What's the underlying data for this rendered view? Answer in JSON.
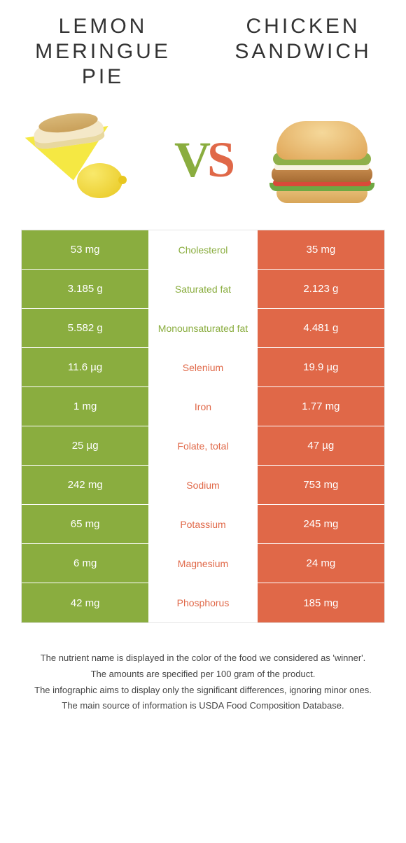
{
  "colors": {
    "green": "#8aad3f",
    "orange": "#e06848",
    "text": "#333333",
    "border": "#e5e5e5"
  },
  "header": {
    "left_title": "Lemon Meringue Pie",
    "right_title": "Chicken Sandwich",
    "vs_v": "V",
    "vs_s": "S"
  },
  "table": {
    "rows": [
      {
        "left": "53 mg",
        "label": "Cholesterol",
        "right": "35 mg",
        "winner": "left"
      },
      {
        "left": "3.185 g",
        "label": "Saturated fat",
        "right": "2.123 g",
        "winner": "left"
      },
      {
        "left": "5.582 g",
        "label": "Monounsaturated fat",
        "right": "4.481 g",
        "winner": "left"
      },
      {
        "left": "11.6 µg",
        "label": "Selenium",
        "right": "19.9 µg",
        "winner": "right"
      },
      {
        "left": "1 mg",
        "label": "Iron",
        "right": "1.77 mg",
        "winner": "right"
      },
      {
        "left": "25 µg",
        "label": "Folate, total",
        "right": "47 µg",
        "winner": "right"
      },
      {
        "left": "242 mg",
        "label": "Sodium",
        "right": "753 mg",
        "winner": "right"
      },
      {
        "left": "65 mg",
        "label": "Potassium",
        "right": "245 mg",
        "winner": "right"
      },
      {
        "left": "6 mg",
        "label": "Magnesium",
        "right": "24 mg",
        "winner": "right"
      },
      {
        "left": "42 mg",
        "label": "Phosphorus",
        "right": "185 mg",
        "winner": "right"
      }
    ]
  },
  "footnotes": {
    "line1": "The nutrient name is displayed in the color of the food we considered as 'winner'.",
    "line2": "The amounts are specified per 100 gram of the product.",
    "line3": "The infographic aims to display only the significant differences, ignoring minor ones.",
    "line4": "The main source of information is USDA Food Composition Database."
  }
}
